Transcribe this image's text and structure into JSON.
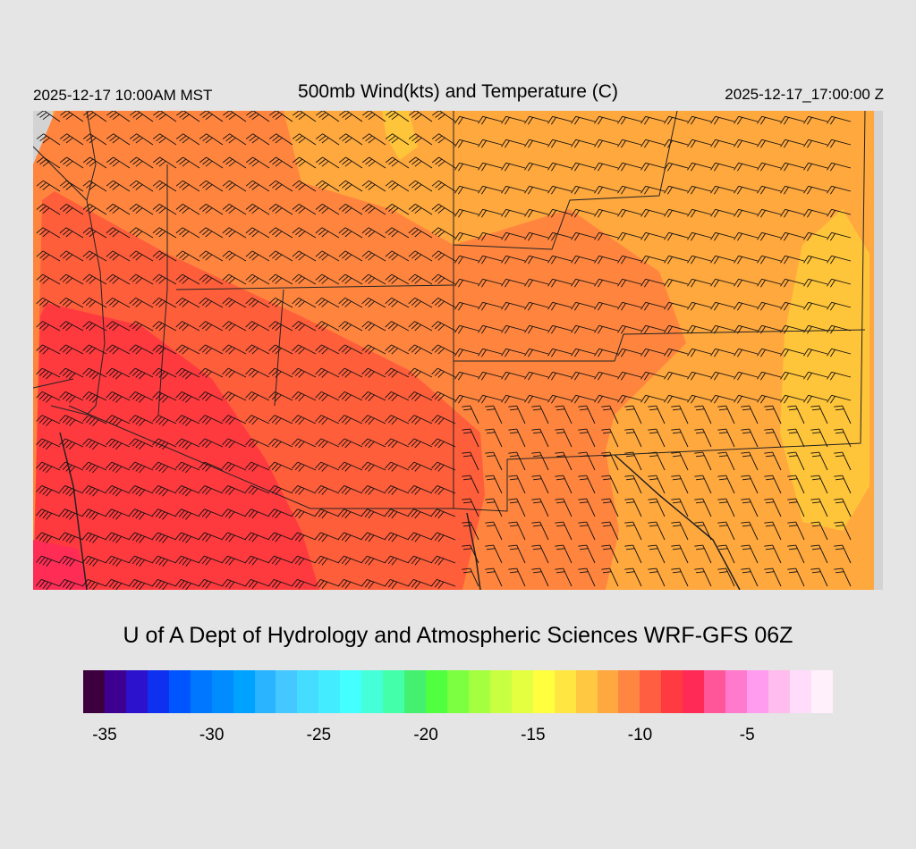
{
  "header": {
    "local_time": "2025-12-17 10:00AM MST",
    "title": "500mb Wind(kts) and Temperature (C)",
    "valid_time": "2025-12-17_17:00:00 Z"
  },
  "credit": "U of A Dept of Hydrology and Atmospheric Sciences WRF-GFS 06Z",
  "map": {
    "field": "500mb temperature (C) with wind barbs (kts)",
    "fill_colors": {
      "red": "#ff3a3f",
      "orange_red": "#ff5e3b",
      "orange": "#ff853f",
      "light_orange": "#ffa83e",
      "yellow_orange": "#ffc53a",
      "pink_red": "#ff2d55",
      "no_data": "#d3d3d3"
    }
  },
  "colorbar": {
    "colors": [
      "#3c003f",
      "#3d0090",
      "#2c12cc",
      "#1030f0",
      "#0055ff",
      "#0077ff",
      "#008cff",
      "#00a2ff",
      "#2ab4ff",
      "#45c8ff",
      "#44dcff",
      "#44ecff",
      "#44ffff",
      "#44ffd8",
      "#44ffaa",
      "#44f070",
      "#50ff40",
      "#7cff40",
      "#a4ff40",
      "#c8ff40",
      "#e4ff40",
      "#ffff40",
      "#ffe640",
      "#ffc840",
      "#ffa840",
      "#ff8640",
      "#ff5e40",
      "#ff3a40",
      "#ff2a55",
      "#ff5599",
      "#ff7acc",
      "#ff9cf0",
      "#ffbcec",
      "#ffdcfa",
      "#fff0fc"
    ],
    "ticks": [
      {
        "label": "-35",
        "index": 1
      },
      {
        "label": "-30",
        "index": 6
      },
      {
        "label": "-25",
        "index": 11
      },
      {
        "label": "-20",
        "index": 16
      },
      {
        "label": "-15",
        "index": 21
      },
      {
        "label": "-10",
        "index": 26
      },
      {
        "label": "-5",
        "index": 31
      }
    ]
  }
}
